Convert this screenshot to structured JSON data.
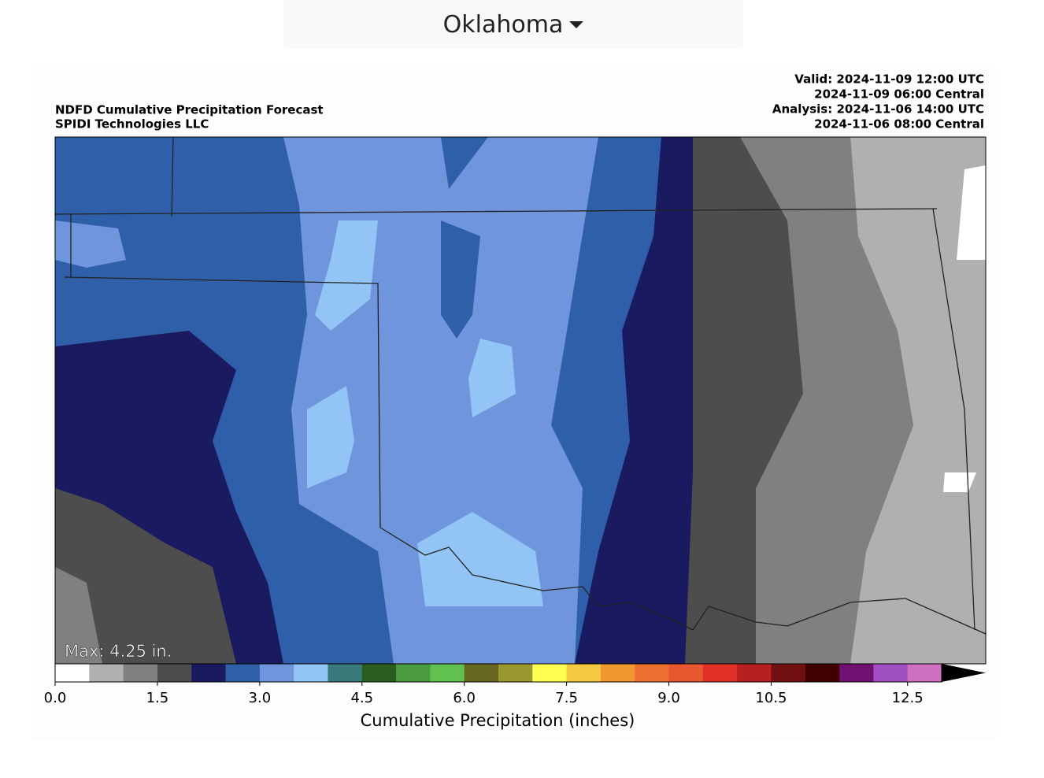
{
  "dropdown": {
    "label": "Oklahoma"
  },
  "map": {
    "title": [
      "NDFD Cumulative Precipitation Forecast",
      "SPIDI Technologies LLC"
    ],
    "times": [
      "Valid: 2024-11-09 12:00 UTC",
      "2024-11-09 06:00 Central",
      "Analysis: 2024-11-06 14:00 UTC",
      "2024-11-06 08:00 Central"
    ],
    "max_label": "Max: 4.25 in."
  },
  "colorbar": {
    "label": "Cumulative Precipitation (inches)",
    "lim": [
      0,
      13
    ],
    "colors": [
      "#ffffff",
      "#b0b0b0",
      "#808080",
      "#4d4d4d",
      "#1a1a60",
      "#2e5fa8",
      "#6f95dc",
      "#92c5f5",
      "#3a7a7a",
      "#2a5e1e",
      "#4a9a40",
      "#60c050",
      "#666620",
      "#999930",
      "#ffff50",
      "#f5c842",
      "#f09830",
      "#ec7030",
      "#e85830",
      "#e03028",
      "#b82020",
      "#701010",
      "#400000",
      "#701070",
      "#a050c0",
      "#d070c0"
    ],
    "extend": "max",
    "extend_color": "#000000",
    "ticks": [
      {
        "value": 0,
        "label": "0.0"
      },
      1.5,
      {
        "value": 3,
        "label": "3.0"
      },
      4.5,
      {
        "value": 6,
        "label": "6.0"
      },
      7.5,
      {
        "value": 9,
        "label": "9.0"
      },
      10.5,
      12.5
    ]
  }
}
